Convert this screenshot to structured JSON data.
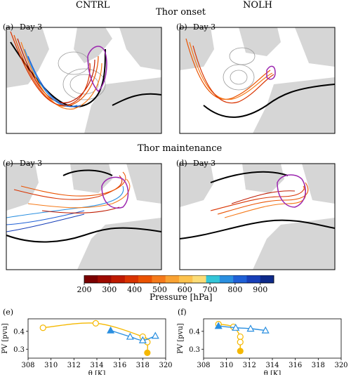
{
  "figure": {
    "col_left": "CNTRL",
    "col_right": "NOLH",
    "row1_title": "Thor onset",
    "row2_title": "Thor maintenance"
  },
  "panels": {
    "a": {
      "tag": "(a)",
      "day": "Day 3"
    },
    "b": {
      "tag": "(b)",
      "day": "Day 3"
    },
    "c": {
      "tag": "(c)",
      "day": "Day 3"
    },
    "d": {
      "tag": "(d)",
      "day": "Day 3"
    },
    "e": {
      "tag": "(e)"
    },
    "f": {
      "tag": "(f)"
    }
  },
  "colorbar": {
    "label": "Pressure [hPa]",
    "ticks": [
      "200",
      "300",
      "400",
      "500",
      "600",
      "700",
      "800",
      "900"
    ],
    "colors": [
      "#7a0000",
      "#9e0a00",
      "#bf1a00",
      "#d93300",
      "#ea5200",
      "#f57a1a",
      "#f9a232",
      "#fcc24c",
      "#fbdc76",
      "#33c6d8",
      "#2a8fe0",
      "#1f60d6",
      "#173fb8",
      "#0e2a8a"
    ]
  },
  "chart_data": [
    {
      "panel": "e",
      "type": "line",
      "xlabel": "θ [K]",
      "ylabel": "PV [pvu]",
      "xlim": [
        308,
        320
      ],
      "ylim": [
        0.25,
        0.47
      ],
      "xticks": [
        308,
        310,
        312,
        314,
        316,
        318,
        320
      ],
      "yticks": [
        0.3,
        0.4
      ],
      "series": [
        {
          "color": "#f5b800",
          "marker": "circle",
          "x": [
            309.3,
            313.9,
            318.0,
            318.4,
            318.4
          ],
          "y": [
            0.42,
            0.445,
            0.37,
            0.34,
            0.28
          ]
        },
        {
          "color": "#2a8fe0",
          "marker": "triangle",
          "x": [
            315.2,
            316.9,
            318.0,
            319.1
          ],
          "y": [
            0.405,
            0.37,
            0.35,
            0.375
          ]
        }
      ]
    },
    {
      "panel": "f",
      "type": "line",
      "xlabel": "θ [K]",
      "ylabel": "PV [pvu]",
      "xlim": [
        308,
        320
      ],
      "ylim": [
        0.25,
        0.47
      ],
      "xticks": [
        308,
        310,
        312,
        314,
        316,
        318,
        320
      ],
      "yticks": [
        0.3,
        0.4
      ],
      "series": [
        {
          "color": "#f5b800",
          "marker": "circle",
          "x": [
            309.3,
            310.6,
            311.2,
            311.2,
            311.2
          ],
          "y": [
            0.44,
            0.425,
            0.37,
            0.34,
            0.29
          ]
        },
        {
          "color": "#2a8fe0",
          "marker": "triangle",
          "x": [
            309.3,
            310.8,
            312.1,
            313.4
          ],
          "y": [
            0.43,
            0.42,
            0.415,
            0.405
          ]
        }
      ]
    }
  ]
}
